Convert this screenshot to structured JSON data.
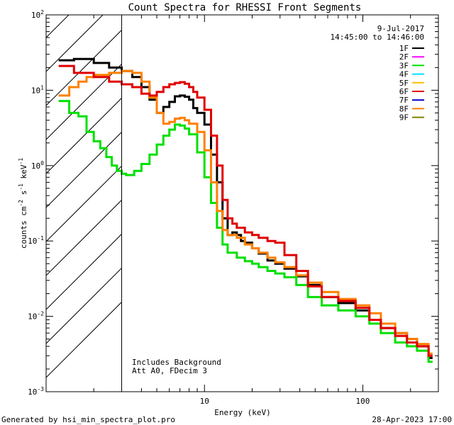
{
  "chart_data": {
    "type": "line",
    "title": "Count Spectra for RHESSI Front Segments",
    "xlabel": "Energy (keV)",
    "ylabel_parts": [
      "counts cm",
      "-2",
      " s",
      "-1",
      " keV",
      "-1"
    ],
    "xscale": "log",
    "yscale": "log",
    "xlim": [
      1.0,
      300
    ],
    "ylim": [
      0.001,
      100
    ],
    "x_ticks": [
      {
        "value": 10,
        "label": "10"
      },
      {
        "value": 100,
        "label": "100"
      }
    ],
    "y_ticks": [
      {
        "value": 0.001,
        "base": "10",
        "exp": "-3"
      },
      {
        "value": 0.01,
        "base": "10",
        "exp": "-2"
      },
      {
        "value": 0.1,
        "base": "10",
        "exp": "-1"
      },
      {
        "value": 1,
        "base": "10",
        "exp": "0"
      },
      {
        "value": 10,
        "base": "10",
        "exp": "1"
      },
      {
        "value": 100,
        "base": "10",
        "exp": "2"
      }
    ],
    "hatch_region": {
      "from": 1.0,
      "to": 3.0
    },
    "date": "9-Jul-2017",
    "time_range": "14:45:00 to 14:46:00",
    "annotations": [
      "Includes Background",
      "Att A0, FDecim 3"
    ],
    "legend": [
      {
        "name": "1F",
        "color": "#000000"
      },
      {
        "name": "2F",
        "color": "#ff00ff"
      },
      {
        "name": "3F",
        "color": "#00e000"
      },
      {
        "name": "4F",
        "color": "#00e0ff"
      },
      {
        "name": "5F",
        "color": "#ffbb00"
      },
      {
        "name": "6F",
        "color": "#e00000"
      },
      {
        "name": "7F",
        "color": "#0000c8"
      },
      {
        "name": "8F",
        "color": "#ff8000"
      },
      {
        "name": "9F",
        "color": "#808000"
      }
    ],
    "series": [
      {
        "name": "1F",
        "color": "#000000",
        "points": [
          [
            1.2,
            25
          ],
          [
            1.5,
            26
          ],
          [
            2.0,
            23
          ],
          [
            2.5,
            20
          ],
          [
            3.0,
            18
          ],
          [
            3.5,
            15
          ],
          [
            4.0,
            11
          ],
          [
            4.5,
            7.5
          ],
          [
            5.0,
            5
          ],
          [
            5.5,
            6
          ],
          [
            6.0,
            7
          ],
          [
            6.5,
            8.3
          ],
          [
            7.0,
            8.5
          ],
          [
            7.5,
            8.2
          ],
          [
            8.0,
            7.5
          ],
          [
            8.5,
            5.8
          ],
          [
            9.0,
            5
          ],
          [
            10,
            3.5
          ],
          [
            11,
            1.4
          ],
          [
            12,
            0.6
          ],
          [
            13,
            0.2
          ],
          [
            14,
            0.12
          ],
          [
            15,
            0.13
          ],
          [
            16,
            0.12
          ],
          [
            17,
            0.1
          ],
          [
            18,
            0.095
          ],
          [
            20,
            0.08
          ],
          [
            22,
            0.068
          ],
          [
            25,
            0.055
          ],
          [
            28,
            0.05
          ],
          [
            32,
            0.043
          ],
          [
            38,
            0.034
          ],
          [
            45,
            0.026
          ],
          [
            55,
            0.018
          ],
          [
            70,
            0.015
          ],
          [
            90,
            0.012
          ],
          [
            110,
            0.009
          ],
          [
            130,
            0.007
          ],
          [
            160,
            0.006
          ],
          [
            190,
            0.005
          ],
          [
            220,
            0.004
          ],
          [
            260,
            0.0028
          ]
        ]
      },
      {
        "name": "3F",
        "color": "#00e000",
        "points": [
          [
            1.2,
            7.2
          ],
          [
            1.4,
            5
          ],
          [
            1.6,
            4.5
          ],
          [
            1.8,
            2.8
          ],
          [
            2.0,
            2.1
          ],
          [
            2.2,
            1.7
          ],
          [
            2.4,
            1.3
          ],
          [
            2.6,
            1.0
          ],
          [
            2.8,
            0.85
          ],
          [
            3.0,
            0.78
          ],
          [
            3.2,
            0.75
          ],
          [
            3.6,
            0.85
          ],
          [
            4.0,
            1.05
          ],
          [
            4.5,
            1.4
          ],
          [
            5.0,
            1.9
          ],
          [
            5.5,
            2.5
          ],
          [
            6.0,
            3.0
          ],
          [
            6.5,
            3.5
          ],
          [
            7.0,
            3.4
          ],
          [
            7.5,
            3.1
          ],
          [
            8.0,
            2.6
          ],
          [
            9.0,
            1.5
          ],
          [
            10,
            0.7
          ],
          [
            11,
            0.32
          ],
          [
            12,
            0.15
          ],
          [
            13,
            0.09
          ],
          [
            14,
            0.07
          ],
          [
            16,
            0.06
          ],
          [
            18,
            0.054
          ],
          [
            20,
            0.05
          ],
          [
            22,
            0.045
          ],
          [
            25,
            0.04
          ],
          [
            28,
            0.037
          ],
          [
            32,
            0.033
          ],
          [
            38,
            0.026
          ],
          [
            45,
            0.018
          ],
          [
            55,
            0.014
          ],
          [
            70,
            0.012
          ],
          [
            90,
            0.01
          ],
          [
            110,
            0.008
          ],
          [
            130,
            0.006
          ],
          [
            160,
            0.0045
          ],
          [
            190,
            0.004
          ],
          [
            220,
            0.0035
          ],
          [
            260,
            0.0025
          ]
        ]
      },
      {
        "name": "8F",
        "color": "#ff8000",
        "points": [
          [
            1.2,
            8.5
          ],
          [
            1.4,
            11
          ],
          [
            1.6,
            13
          ],
          [
            1.8,
            15
          ],
          [
            2.0,
            16
          ],
          [
            2.5,
            17
          ],
          [
            3.0,
            18
          ],
          [
            3.5,
            17
          ],
          [
            4.0,
            13
          ],
          [
            4.5,
            8
          ],
          [
            5.0,
            5
          ],
          [
            5.5,
            3.6
          ],
          [
            6.0,
            3.8
          ],
          [
            6.5,
            4.2
          ],
          [
            7.0,
            4.3
          ],
          [
            7.5,
            4.0
          ],
          [
            8.0,
            3.6
          ],
          [
            9.0,
            2.8
          ],
          [
            10,
            1.6
          ],
          [
            11,
            0.6
          ],
          [
            12,
            0.25
          ],
          [
            13,
            0.14
          ],
          [
            14,
            0.12
          ],
          [
            16,
            0.11
          ],
          [
            18,
            0.09
          ],
          [
            20,
            0.08
          ],
          [
            22,
            0.07
          ],
          [
            25,
            0.06
          ],
          [
            28,
            0.052
          ],
          [
            32,
            0.045
          ],
          [
            38,
            0.035
          ],
          [
            45,
            0.028
          ],
          [
            55,
            0.021
          ],
          [
            70,
            0.017
          ],
          [
            90,
            0.014
          ],
          [
            110,
            0.011
          ],
          [
            130,
            0.008
          ],
          [
            160,
            0.006
          ],
          [
            190,
            0.005
          ],
          [
            220,
            0.0043
          ],
          [
            260,
            0.0032
          ]
        ]
      },
      {
        "name": "6F",
        "color": "#e00000",
        "points": [
          [
            1.2,
            21
          ],
          [
            1.5,
            17
          ],
          [
            2.0,
            15
          ],
          [
            2.5,
            13
          ],
          [
            3.0,
            12
          ],
          [
            3.5,
            11
          ],
          [
            4.0,
            9
          ],
          [
            4.5,
            8.5
          ],
          [
            5.0,
            9.5
          ],
          [
            5.5,
            11
          ],
          [
            6.0,
            12
          ],
          [
            6.5,
            12.5
          ],
          [
            7.0,
            12.8
          ],
          [
            7.5,
            12.2
          ],
          [
            8.0,
            11
          ],
          [
            8.5,
            9.5
          ],
          [
            9.0,
            8
          ],
          [
            10,
            5.5
          ],
          [
            11,
            2.5
          ],
          [
            12,
            1.0
          ],
          [
            13,
            0.35
          ],
          [
            14,
            0.2
          ],
          [
            15,
            0.17
          ],
          [
            16,
            0.15
          ],
          [
            18,
            0.13
          ],
          [
            20,
            0.12
          ],
          [
            22,
            0.11
          ],
          [
            25,
            0.1
          ],
          [
            28,
            0.095
          ],
          [
            32,
            0.065
          ],
          [
            38,
            0.04
          ],
          [
            45,
            0.025
          ],
          [
            55,
            0.018
          ],
          [
            70,
            0.016
          ],
          [
            90,
            0.013
          ],
          [
            110,
            0.009
          ],
          [
            130,
            0.007
          ],
          [
            160,
            0.0055
          ],
          [
            190,
            0.0045
          ],
          [
            220,
            0.004
          ],
          [
            260,
            0.003
          ]
        ]
      }
    ]
  },
  "footer": {
    "left": "Generated by hsi_min_spectra_plot.pro",
    "right": "28-Apr-2023 17:00"
  }
}
